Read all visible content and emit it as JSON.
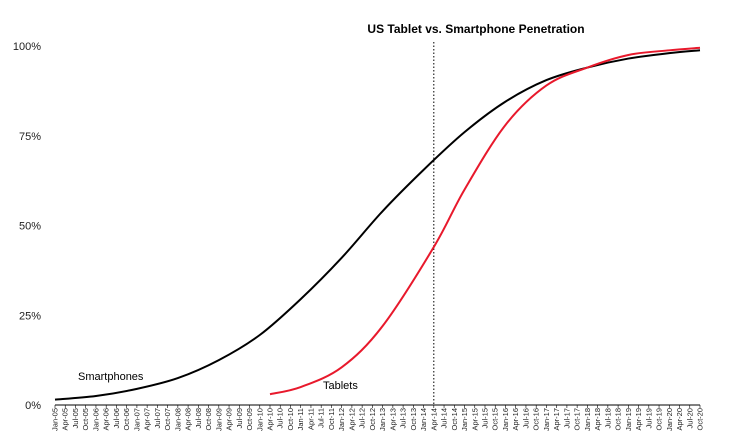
{
  "chart_data": {
    "type": "line",
    "title": "US Tablet vs. Smartphone Penetration",
    "xlabel": "",
    "ylabel": "",
    "ylim": [
      0,
      100
    ],
    "y_ticks": [
      "0%",
      "25%",
      "50%",
      "75%",
      "100%"
    ],
    "grid": false,
    "x_ticks": [
      "Jan-05",
      "Apr-05",
      "Jul-05",
      "Oct-05",
      "Jan-06",
      "Apr-06",
      "Jul-06",
      "Oct-06",
      "Jan-07",
      "Apr-07",
      "Jul-07",
      "Oct-07",
      "Jan-08",
      "Apr-08",
      "Jul-08",
      "Oct-08",
      "Jan-09",
      "Apr-09",
      "Jul-09",
      "Oct-09",
      "Jan-10",
      "Apr-10",
      "Jul-10",
      "Oct-10",
      "Jan-11",
      "Apr-11",
      "Jul-11",
      "Oct-11",
      "Jan-12",
      "Apr-12",
      "Jul-12",
      "Oct-12",
      "Jan-13",
      "Apr-13",
      "Jul-13",
      "Oct-13",
      "Jan-14",
      "Apr-14",
      "Jul-14",
      "Oct-14",
      "Jan-15",
      "Apr-15",
      "Jul-15",
      "Oct-15",
      "Jan-16",
      "Apr-16",
      "Jul-16",
      "Oct-16",
      "Jan-17",
      "Apr-17",
      "Jul-17",
      "Oct-17",
      "Jan-18",
      "Apr-18",
      "Jul-18",
      "Oct-18",
      "Jan-19",
      "Apr-19",
      "Jul-19",
      "Oct-19",
      "Jan-20",
      "Apr-20",
      "Jul-20",
      "Oct-20"
    ],
    "vertical_marker": "Apr-14",
    "series": [
      {
        "name": "Smartphones",
        "color": "#000000",
        "x": [
          "Jan-05",
          "Jan-06",
          "Jan-07",
          "Jan-08",
          "Jan-09",
          "Jan-10",
          "Jan-11",
          "Jan-12",
          "Jan-13",
          "Jan-14",
          "Jan-15",
          "Jan-16",
          "Jan-17",
          "Jan-18",
          "Jan-19",
          "Jan-20",
          "Oct-20"
        ],
        "values": [
          1.5,
          2.5,
          4.5,
          7.5,
          12.5,
          19.5,
          29.5,
          41,
          54,
          65.5,
          76,
          84.5,
          90.5,
          94,
          96.5,
          98,
          98.8
        ]
      },
      {
        "name": "Tablets",
        "color": "#e8192c",
        "x": [
          "Apr-10",
          "Jan-11",
          "Jan-12",
          "Jan-13",
          "Apr-14",
          "Jan-15",
          "Jan-16",
          "Jan-17",
          "Jan-18",
          "Jan-19",
          "Jan-20",
          "Oct-20"
        ],
        "values": [
          3,
          5,
          10.5,
          22,
          44,
          60,
          78,
          89,
          94,
          97.5,
          98.8,
          99.5
        ]
      }
    ]
  }
}
